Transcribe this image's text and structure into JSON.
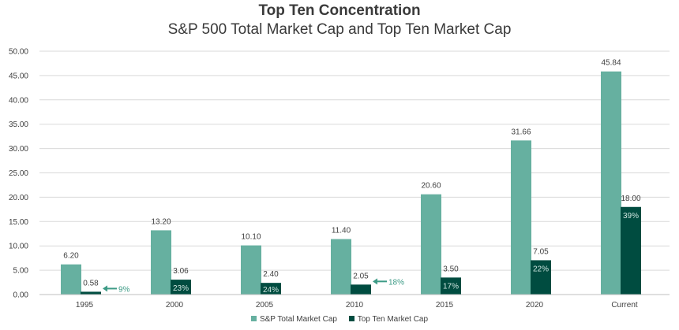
{
  "colors": {
    "total": "#66b0a0",
    "topten": "#004c40",
    "grid": "#d9d9d9",
    "axis_text": "#404040",
    "arrow": "#3d9b86",
    "pct_inside": "#cfe6e0"
  },
  "chart_data": {
    "type": "bar",
    "title": "Top Ten Concentration",
    "subtitle": "S&P 500 Total Market Cap and Top Ten Market Cap",
    "categories": [
      "1995",
      "2000",
      "2005",
      "2010",
      "2015",
      "2020",
      "Current"
    ],
    "series": [
      {
        "name": "S&P Total Market Cap",
        "values": [
          6.2,
          13.2,
          10.1,
          11.4,
          20.6,
          31.66,
          45.84
        ],
        "labels": [
          "6.20",
          "13.20",
          "10.10",
          "11.40",
          "20.60",
          "31.66",
          "45.84"
        ]
      },
      {
        "name": "Top Ten Market Cap",
        "values": [
          0.58,
          3.06,
          2.4,
          2.05,
          3.5,
          7.05,
          18.0
        ],
        "labels": [
          "0.58",
          "3.06",
          "2.40",
          "2.05",
          "3.50",
          "7.05",
          "18.00"
        ],
        "share_labels": [
          "9%",
          "23%",
          "24%",
          "18%",
          "17%",
          "22%",
          "39%"
        ]
      }
    ],
    "ylim": [
      0,
      50
    ],
    "yticks": [
      "0.00",
      "5.00",
      "10.00",
      "15.00",
      "20.00",
      "25.00",
      "30.00",
      "35.00",
      "40.00",
      "45.00",
      "50.00"
    ],
    "grid": true,
    "legend": "bottom-center"
  }
}
